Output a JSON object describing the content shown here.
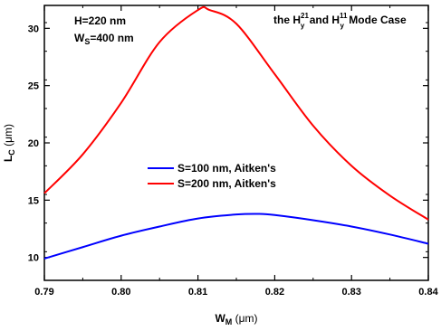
{
  "chart_data": {
    "type": "line",
    "title": "",
    "title_annotation": {
      "prefix": "the H",
      "sup1": "21",
      "mid": " and H",
      "sup2": "11",
      "suffix": " Mode Case",
      "sub": "y"
    },
    "params": {
      "line1": "H=220 nm",
      "line2_main": "W",
      "line2_sub": "S",
      "line2_rest": "=400 nm"
    },
    "xlabel": {
      "main": "W",
      "sub": "M",
      "rest": " (μm)"
    },
    "ylabel": {
      "main": "L",
      "sub": "C",
      "rest": " (μm)"
    },
    "xlim": [
      0.79,
      0.84
    ],
    "ylim": [
      8,
      32
    ],
    "xticks": [
      "0.79",
      "0.80",
      "0.81",
      "0.82",
      "0.83",
      "0.84"
    ],
    "yticks": [
      "10",
      "15",
      "20",
      "25",
      "30"
    ],
    "xtick_values": [
      0.79,
      0.8,
      0.81,
      0.82,
      0.83,
      0.84
    ],
    "ytick_values": [
      10,
      15,
      20,
      25,
      30
    ],
    "legend_position": "center",
    "series": [
      {
        "name": "S=100 nm, Aitken's",
        "color": "#0000ff",
        "x": [
          0.79,
          0.795,
          0.8,
          0.805,
          0.81,
          0.815,
          0.818,
          0.82,
          0.825,
          0.83,
          0.835,
          0.84
        ],
        "y": [
          9.9,
          10.9,
          11.9,
          12.7,
          13.4,
          13.75,
          13.8,
          13.7,
          13.25,
          12.7,
          12.0,
          11.2
        ]
      },
      {
        "name": "S=200 nm, Aitken's",
        "color": "#ff0000",
        "x": [
          0.79,
          0.795,
          0.8,
          0.805,
          0.81,
          0.8115,
          0.815,
          0.82,
          0.825,
          0.83,
          0.835,
          0.84
        ],
        "y": [
          15.6,
          19.0,
          23.5,
          28.8,
          31.6,
          31.6,
          30.4,
          26.0,
          21.5,
          18.0,
          15.4,
          13.3
        ]
      }
    ]
  }
}
